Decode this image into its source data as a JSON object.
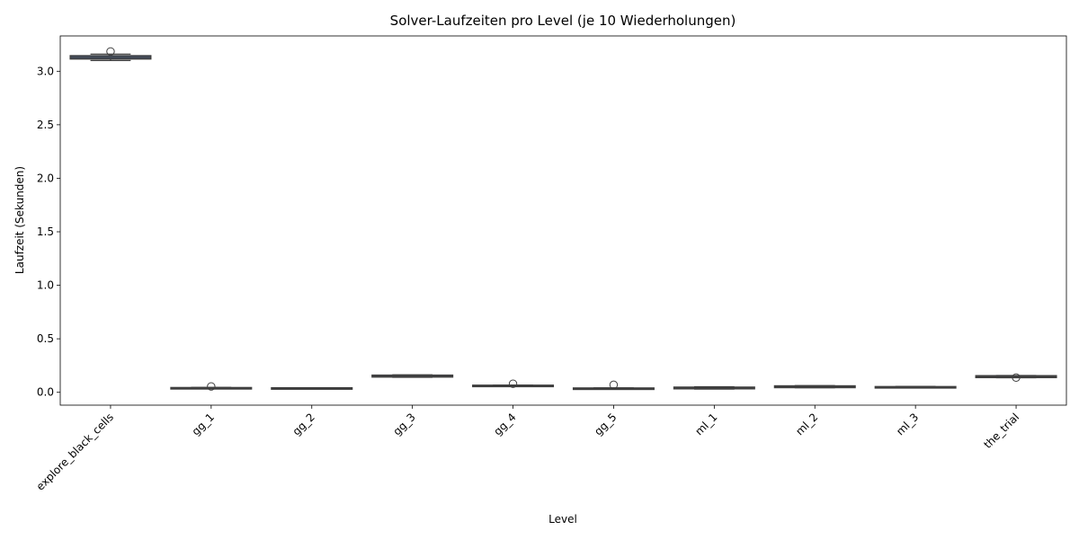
{
  "chart_data": {
    "type": "box",
    "title": "Solver-Laufzeiten pro Level (je 10 Wiederholungen)",
    "xlabel": "Level",
    "ylabel": "Laufzeit (Sekunden)",
    "categories": [
      "explore_black_cells",
      "gg_1",
      "gg_2",
      "gg_3",
      "gg_4",
      "gg_5",
      "ml_1",
      "ml_2",
      "ml_3",
      "the_trial"
    ],
    "ylim": [
      -0.12,
      3.33
    ],
    "yticks": [
      0.0,
      0.5,
      1.0,
      1.5,
      2.0,
      2.5,
      3.0
    ],
    "ytick_labels": [
      "0.0",
      "0.5",
      "1.0",
      "1.5",
      "2.0",
      "2.5",
      "3.0"
    ],
    "box_color": "#4C72B0",
    "edge_color": "#3f3f3f",
    "boxes": [
      {
        "category": "explore_black_cells",
        "whisker_low": 3.1,
        "q1": 3.115,
        "median": 3.13,
        "q3": 3.145,
        "whisker_high": 3.16,
        "outliers": [
          3.185
        ]
      },
      {
        "category": "gg_1",
        "whisker_low": 0.038,
        "q1": 0.04,
        "median": 0.042,
        "q3": 0.044,
        "whisker_high": 0.046,
        "outliers": [
          0.055
        ]
      },
      {
        "category": "gg_2",
        "whisker_low": 0.037,
        "q1": 0.039,
        "median": 0.04,
        "q3": 0.042,
        "whisker_high": 0.043,
        "outliers": []
      },
      {
        "category": "gg_3",
        "whisker_low": 0.14,
        "q1": 0.143,
        "median": 0.15,
        "q3": 0.16,
        "whisker_high": 0.163,
        "outliers": []
      },
      {
        "category": "gg_4",
        "whisker_low": 0.055,
        "q1": 0.057,
        "median": 0.06,
        "q3": 0.066,
        "whisker_high": 0.068,
        "outliers": [
          0.08
        ]
      },
      {
        "category": "gg_5",
        "whisker_low": 0.03,
        "q1": 0.032,
        "median": 0.034,
        "q3": 0.04,
        "whisker_high": 0.042,
        "outliers": [
          0.07
        ]
      },
      {
        "category": "ml_1",
        "whisker_low": 0.03,
        "q1": 0.033,
        "median": 0.037,
        "q3": 0.048,
        "whisker_high": 0.052,
        "outliers": []
      },
      {
        "category": "ml_2",
        "whisker_low": 0.042,
        "q1": 0.044,
        "median": 0.05,
        "q3": 0.06,
        "whisker_high": 0.063,
        "outliers": []
      },
      {
        "category": "ml_3",
        "whisker_low": 0.046,
        "q1": 0.048,
        "median": 0.05,
        "q3": 0.053,
        "whisker_high": 0.055,
        "outliers": []
      },
      {
        "category": "the_trial",
        "whisker_low": 0.136,
        "q1": 0.138,
        "median": 0.145,
        "q3": 0.155,
        "whisker_high": 0.157,
        "outliers": [
          0.138
        ]
      }
    ]
  }
}
